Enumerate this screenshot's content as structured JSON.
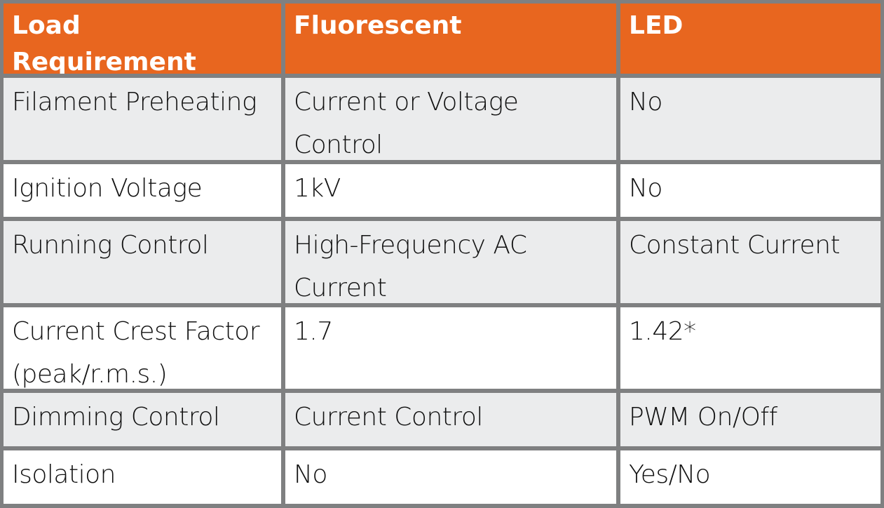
{
  "table": {
    "header_color": "#e8661f",
    "border_color": "#7f8081",
    "columns": [
      "Load Requirement",
      "Fluorescent",
      "LED"
    ],
    "rows": [
      {
        "requirement": "Filament Preheating",
        "fluorescent": "Current or Voltage Control",
        "led": "No"
      },
      {
        "requirement": "Ignition Voltage",
        "fluorescent": "1kV",
        "led": "No"
      },
      {
        "requirement": "Running Control",
        "fluorescent": "High-Frequency AC Current",
        "led": "Constant Current"
      },
      {
        "requirement": "Current Crest Factor (peak/r.m.s.)",
        "fluorescent": "1.7",
        "led": "1.42*"
      },
      {
        "requirement": "Dimming Control",
        "fluorescent": "Current Control",
        "led": "PWM On/Off"
      },
      {
        "requirement": "Isolation",
        "fluorescent": "No",
        "led": "Yes/No"
      }
    ]
  }
}
